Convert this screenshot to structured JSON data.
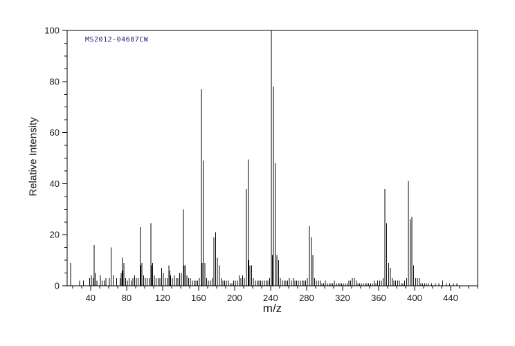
{
  "chart_data": {
    "type": "bar",
    "subtype": "mass-spectrum-stick-plot",
    "title": "MS2012-04687CW",
    "xlabel": "m/z",
    "ylabel": "Relative Intensity",
    "xlim": [
      14,
      470
    ],
    "ylim": [
      0,
      100
    ],
    "x_ticks": [
      40,
      80,
      120,
      160,
      200,
      240,
      280,
      320,
      360,
      400,
      440
    ],
    "y_ticks": [
      0,
      20,
      40,
      60,
      80,
      100
    ],
    "x_minor_step": 10,
    "y_minor_step": 5,
    "grid": false,
    "line_color": "#000000",
    "peaks": [
      [
        18,
        9
      ],
      [
        28,
        2
      ],
      [
        32,
        2
      ],
      [
        39,
        3
      ],
      [
        41,
        4
      ],
      [
        43,
        3
      ],
      [
        44,
        16
      ],
      [
        45,
        5
      ],
      [
        47,
        2
      ],
      [
        51,
        4
      ],
      [
        53,
        2
      ],
      [
        55,
        2
      ],
      [
        57,
        3
      ],
      [
        61,
        3
      ],
      [
        63,
        15
      ],
      [
        65,
        4
      ],
      [
        69,
        3
      ],
      [
        73,
        3
      ],
      [
        74,
        5
      ],
      [
        75,
        11
      ],
      [
        76,
        6
      ],
      [
        77,
        9
      ],
      [
        79,
        3
      ],
      [
        81,
        2
      ],
      [
        83,
        3
      ],
      [
        85,
        2
      ],
      [
        87,
        3
      ],
      [
        89,
        4
      ],
      [
        91,
        3
      ],
      [
        93,
        3
      ],
      [
        95,
        23
      ],
      [
        96,
        8
      ],
      [
        97,
        9
      ],
      [
        99,
        4
      ],
      [
        101,
        3
      ],
      [
        103,
        3
      ],
      [
        105,
        3
      ],
      [
        107,
        24.5
      ],
      [
        108,
        8
      ],
      [
        109,
        9
      ],
      [
        111,
        4
      ],
      [
        113,
        3
      ],
      [
        115,
        3
      ],
      [
        117,
        3
      ],
      [
        119,
        7
      ],
      [
        121,
        5
      ],
      [
        123,
        3
      ],
      [
        125,
        3
      ],
      [
        127,
        8
      ],
      [
        128,
        6
      ],
      [
        129,
        4
      ],
      [
        131,
        3
      ],
      [
        133,
        4
      ],
      [
        135,
        3
      ],
      [
        137,
        3
      ],
      [
        139,
        5
      ],
      [
        141,
        5
      ],
      [
        143,
        30
      ],
      [
        144,
        8
      ],
      [
        145,
        8
      ],
      [
        147,
        4
      ],
      [
        149,
        3
      ],
      [
        151,
        3
      ],
      [
        153,
        2
      ],
      [
        155,
        2
      ],
      [
        157,
        2
      ],
      [
        159,
        2
      ],
      [
        161,
        3
      ],
      [
        163,
        77
      ],
      [
        164,
        9
      ],
      [
        165,
        49
      ],
      [
        167,
        9
      ],
      [
        169,
        3
      ],
      [
        171,
        2
      ],
      [
        173,
        2
      ],
      [
        175,
        3
      ],
      [
        177,
        19
      ],
      [
        179,
        21
      ],
      [
        181,
        11
      ],
      [
        183,
        8
      ],
      [
        185,
        3
      ],
      [
        187,
        2
      ],
      [
        189,
        2
      ],
      [
        191,
        2
      ],
      [
        193,
        2
      ],
      [
        195,
        1
      ],
      [
        197,
        1
      ],
      [
        199,
        2
      ],
      [
        201,
        2
      ],
      [
        203,
        2
      ],
      [
        205,
        4
      ],
      [
        207,
        3
      ],
      [
        209,
        4
      ],
      [
        211,
        3
      ],
      [
        213,
        38
      ],
      [
        215,
        49.5
      ],
      [
        216,
        10
      ],
      [
        217,
        8
      ],
      [
        219,
        8
      ],
      [
        221,
        3
      ],
      [
        223,
        2
      ],
      [
        225,
        2
      ],
      [
        227,
        2
      ],
      [
        229,
        2
      ],
      [
        231,
        2
      ],
      [
        233,
        2
      ],
      [
        235,
        2
      ],
      [
        237,
        2
      ],
      [
        239,
        3
      ],
      [
        241,
        100
      ],
      [
        242,
        12
      ],
      [
        243,
        78
      ],
      [
        245,
        48
      ],
      [
        247,
        12
      ],
      [
        249,
        10
      ],
      [
        251,
        3
      ],
      [
        253,
        2
      ],
      [
        255,
        2
      ],
      [
        257,
        2
      ],
      [
        259,
        2
      ],
      [
        261,
        3
      ],
      [
        263,
        2
      ],
      [
        265,
        3
      ],
      [
        267,
        2
      ],
      [
        269,
        2
      ],
      [
        271,
        2
      ],
      [
        273,
        2
      ],
      [
        275,
        2
      ],
      [
        277,
        2
      ],
      [
        279,
        2
      ],
      [
        281,
        3
      ],
      [
        283,
        23.5
      ],
      [
        285,
        19
      ],
      [
        287,
        12
      ],
      [
        289,
        3
      ],
      [
        291,
        2
      ],
      [
        293,
        2
      ],
      [
        295,
        2
      ],
      [
        297,
        1
      ],
      [
        299,
        1
      ],
      [
        301,
        2
      ],
      [
        303,
        1
      ],
      [
        305,
        1
      ],
      [
        307,
        1
      ],
      [
        309,
        1
      ],
      [
        311,
        2
      ],
      [
        313,
        1
      ],
      [
        315,
        1
      ],
      [
        317,
        1
      ],
      [
        319,
        1
      ],
      [
        321,
        1
      ],
      [
        323,
        1
      ],
      [
        325,
        1
      ],
      [
        327,
        2
      ],
      [
        329,
        2
      ],
      [
        331,
        3
      ],
      [
        333,
        3
      ],
      [
        335,
        2
      ],
      [
        337,
        1
      ],
      [
        339,
        1
      ],
      [
        341,
        1
      ],
      [
        343,
        1
      ],
      [
        345,
        1
      ],
      [
        347,
        1
      ],
      [
        349,
        1
      ],
      [
        351,
        1
      ],
      [
        353,
        1
      ],
      [
        355,
        2
      ],
      [
        357,
        1
      ],
      [
        359,
        2
      ],
      [
        361,
        2
      ],
      [
        363,
        2
      ],
      [
        365,
        3
      ],
      [
        367,
        38
      ],
      [
        369,
        24.5
      ],
      [
        371,
        9
      ],
      [
        373,
        7
      ],
      [
        375,
        3
      ],
      [
        377,
        2
      ],
      [
        379,
        2
      ],
      [
        381,
        2
      ],
      [
        383,
        2
      ],
      [
        385,
        1
      ],
      [
        387,
        1
      ],
      [
        389,
        2
      ],
      [
        391,
        3
      ],
      [
        393,
        41
      ],
      [
        395,
        26
      ],
      [
        397,
        27
      ],
      [
        399,
        8
      ],
      [
        401,
        3
      ],
      [
        403,
        3
      ],
      [
        405,
        3
      ],
      [
        407,
        1
      ],
      [
        409,
        1
      ],
      [
        411,
        1
      ],
      [
        413,
        1
      ],
      [
        415,
        1
      ],
      [
        419,
        1
      ],
      [
        423,
        1
      ],
      [
        427,
        1
      ],
      [
        431,
        2
      ],
      [
        435,
        1
      ],
      [
        439,
        1
      ],
      [
        443,
        1
      ],
      [
        447,
        1
      ]
    ]
  }
}
